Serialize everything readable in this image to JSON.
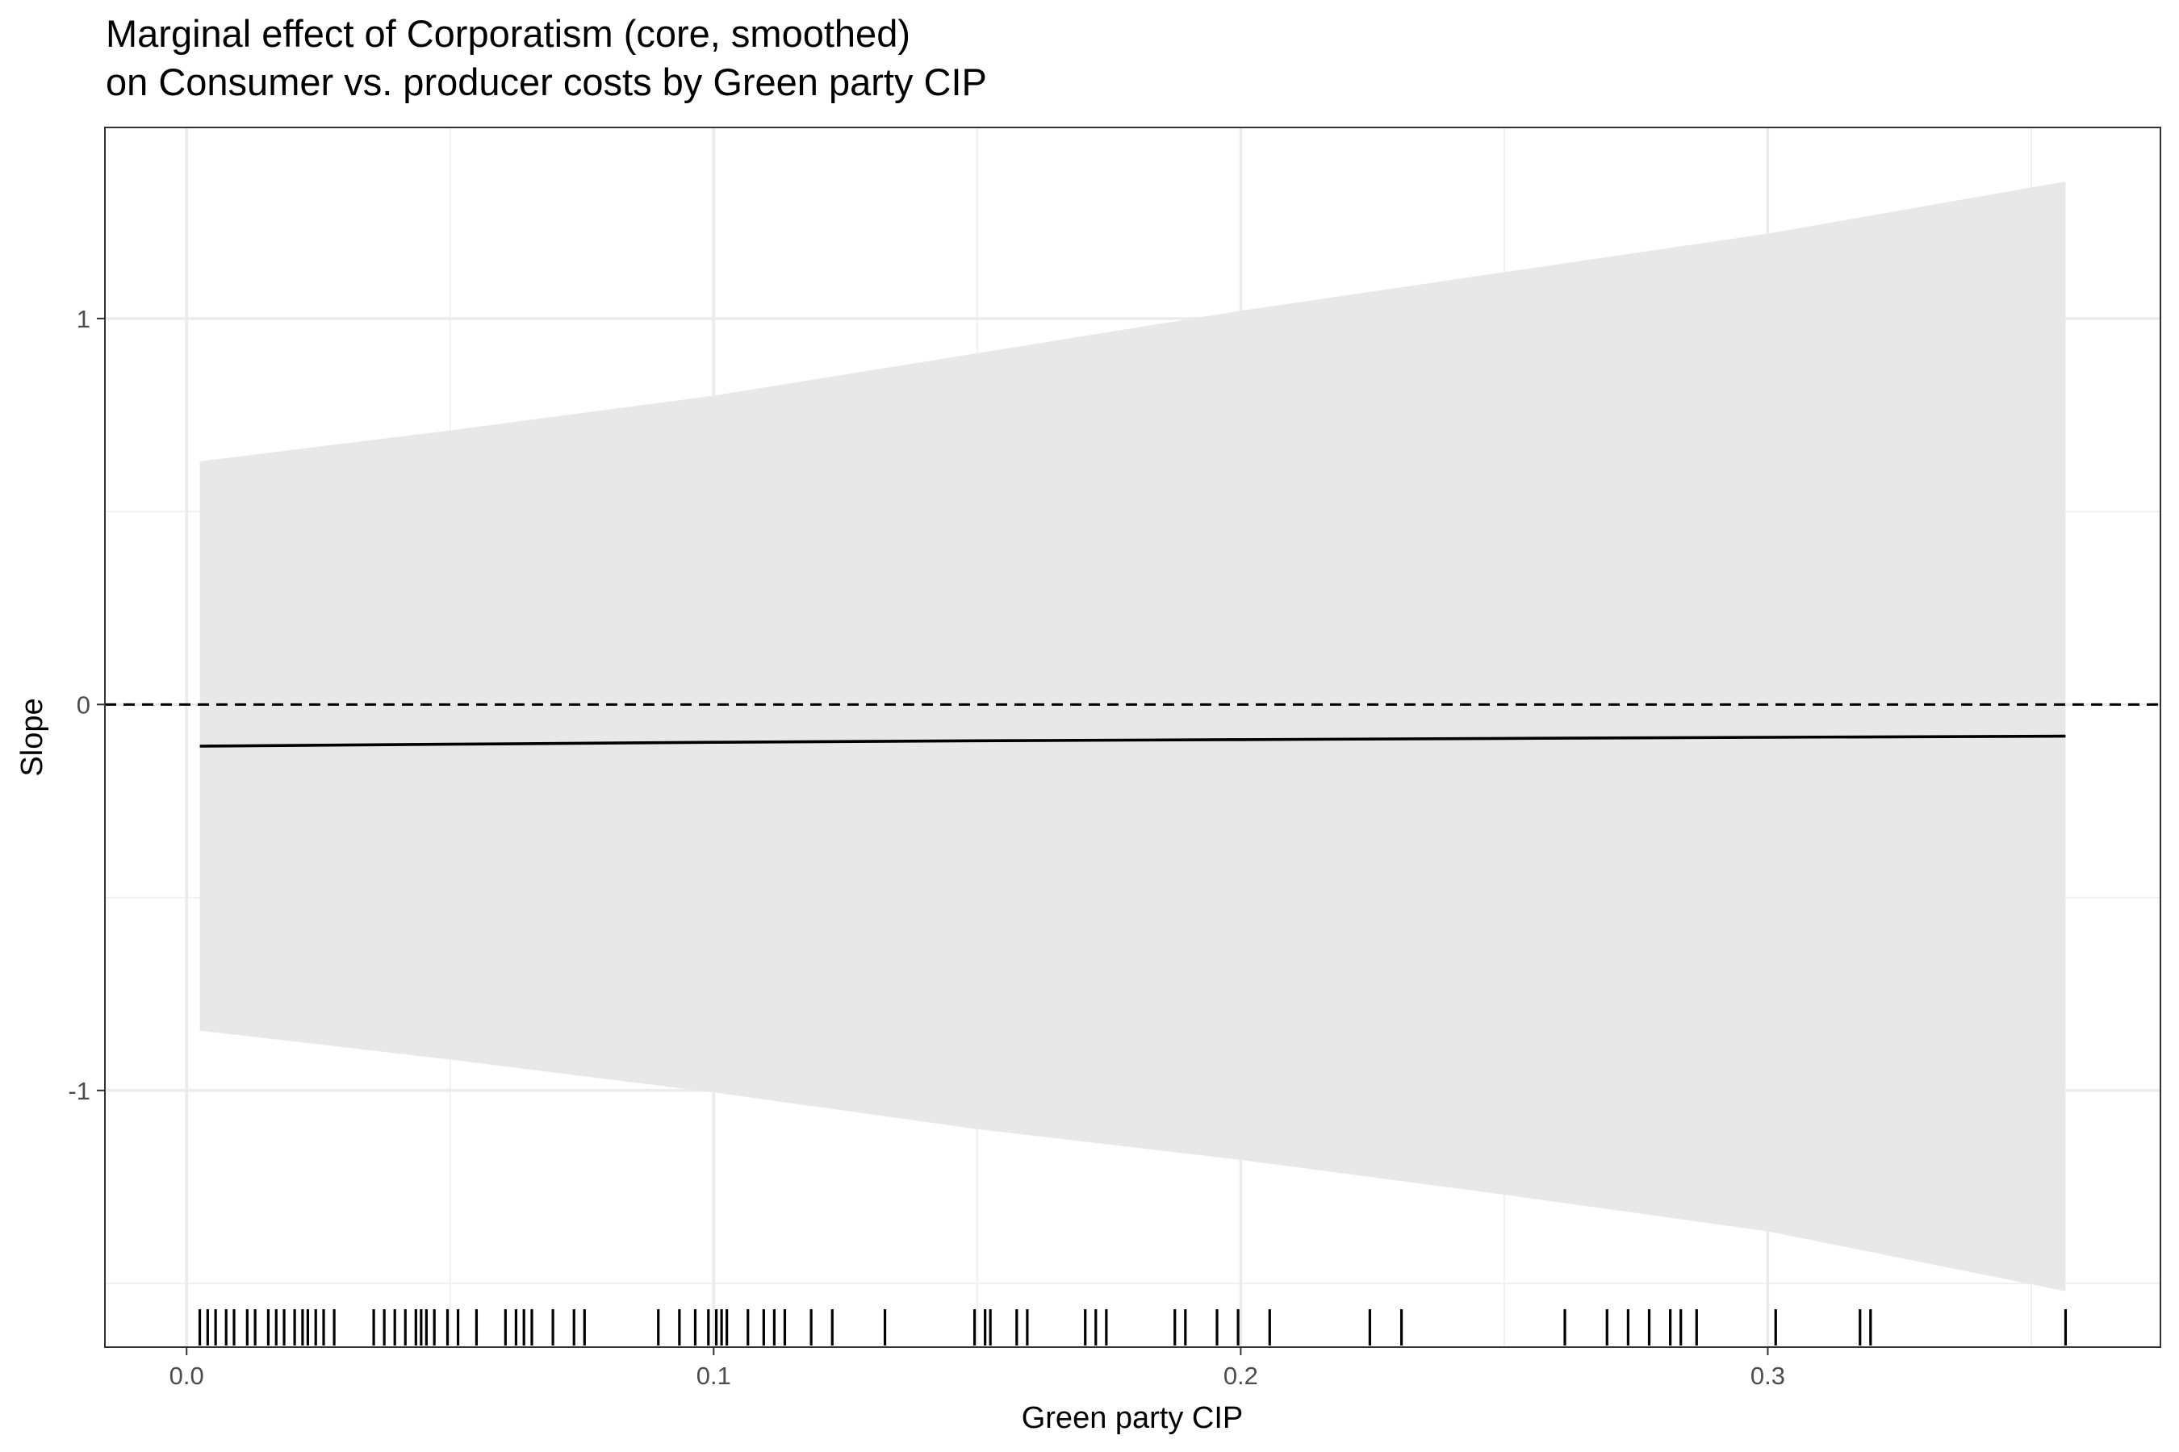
{
  "chart_data": {
    "type": "line",
    "title": "Marginal effect of Corporatism (core, smoothed)",
    "subtitle": "on Consumer vs. producer costs by Green party CIP",
    "xlabel": "Green party CIP",
    "ylabel": "Slope",
    "xlim": [
      -0.0155,
      0.3745
    ],
    "ylim": [
      -1.665,
      1.495
    ],
    "x_ticks": [
      {
        "value": 0.0,
        "label": "0.0"
      },
      {
        "value": 0.1,
        "label": "0.1"
      },
      {
        "value": 0.2,
        "label": "0.2"
      },
      {
        "value": 0.3,
        "label": "0.3"
      }
    ],
    "y_ticks": [
      {
        "value": -1,
        "label": "-1"
      },
      {
        "value": 0,
        "label": "0"
      },
      {
        "value": 1,
        "label": "1"
      }
    ],
    "grid": true,
    "reference_line": {
      "y": 0,
      "style": "dashed"
    },
    "series": [
      {
        "type": "line",
        "x": [
          0.0025,
          0.05,
          0.1,
          0.15,
          0.2,
          0.25,
          0.3,
          0.3565
        ],
        "y": [
          -0.108,
          -0.103,
          -0.098,
          -0.094,
          -0.091,
          -0.088,
          -0.085,
          -0.082
        ]
      }
    ],
    "confidence_band": {
      "x": [
        0.0025,
        0.05,
        0.1,
        0.15,
        0.2,
        0.25,
        0.3,
        0.3565
      ],
      "lower": [
        -0.845,
        -0.92,
        -1.005,
        -1.1,
        -1.18,
        -1.27,
        -1.365,
        -1.52
      ],
      "upper": [
        0.63,
        0.71,
        0.8,
        0.91,
        1.02,
        1.12,
        1.22,
        1.355
      ]
    },
    "rug_x": [
      0.0025,
      0.004,
      0.0055,
      0.0075,
      0.009,
      0.0115,
      0.013,
      0.0155,
      0.017,
      0.0185,
      0.0205,
      0.022,
      0.023,
      0.0245,
      0.026,
      0.028,
      0.0355,
      0.0375,
      0.0395,
      0.0415,
      0.0435,
      0.0445,
      0.0455,
      0.047,
      0.0495,
      0.0515,
      0.055,
      0.0605,
      0.0625,
      0.064,
      0.0655,
      0.0695,
      0.0735,
      0.0755,
      0.0895,
      0.0935,
      0.0965,
      0.099,
      0.1005,
      0.1015,
      0.1025,
      0.1065,
      0.1095,
      0.1115,
      0.1135,
      0.1185,
      0.1225,
      0.1325,
      0.1495,
      0.1515,
      0.1525,
      0.1575,
      0.1595,
      0.1705,
      0.1725,
      0.1745,
      0.1875,
      0.1895,
      0.1955,
      0.1995,
      0.2055,
      0.2245,
      0.2305,
      0.2615,
      0.2695,
      0.2735,
      0.2775,
      0.2815,
      0.2835,
      0.2865,
      0.3015,
      0.3175,
      0.3195,
      0.3565
    ]
  }
}
